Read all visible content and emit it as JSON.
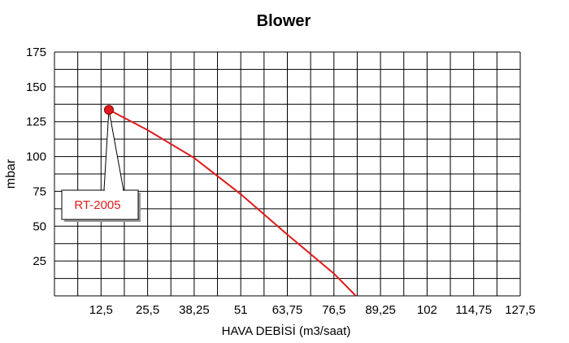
{
  "chart_data": {
    "type": "line",
    "title": "Blower",
    "xlabel": "HAVA DEBİSİ (m3/saat)",
    "ylabel": "mbar",
    "x_ticks": [
      "12,5",
      "25,5",
      "38,25",
      "51",
      "63,75",
      "76,5",
      "89,25",
      "102",
      "114,75",
      "127,5"
    ],
    "y_ticks": [
      "25",
      "50",
      "75",
      "100",
      "125",
      "150",
      "175"
    ],
    "xlim": [
      0,
      127.5
    ],
    "ylim": [
      0,
      175
    ],
    "grid": true,
    "series": [
      {
        "color": "#e01b1b",
        "points": [
          {
            "x": 14.9,
            "y": 133.5
          },
          {
            "x": 25.5,
            "y": 119
          },
          {
            "x": 38.25,
            "y": 99
          },
          {
            "x": 51,
            "y": 73
          },
          {
            "x": 63.75,
            "y": 44
          },
          {
            "x": 76.5,
            "y": 16
          },
          {
            "x": 82.5,
            "y": 0
          }
        ]
      }
    ],
    "annotations": [
      {
        "label": "RT-2005",
        "x": 14.9,
        "y": 133.5
      }
    ]
  }
}
